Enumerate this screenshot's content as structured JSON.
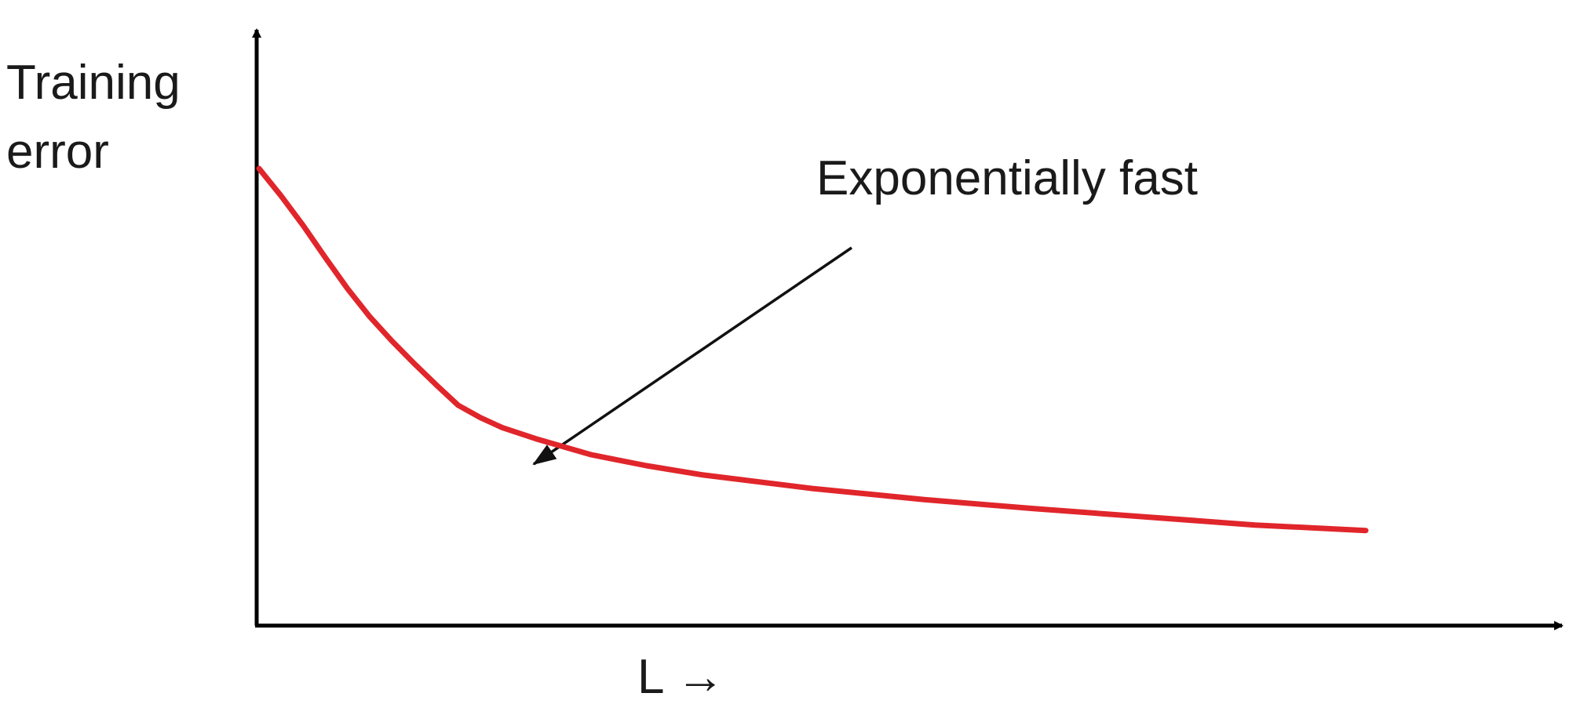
{
  "chart_data": {
    "type": "line",
    "title": "",
    "ylabel_lines": [
      "Training",
      "error"
    ],
    "xlabel": "L →",
    "annotation": {
      "text": "Exponentially fast"
    },
    "grid": false,
    "x_ticks": false,
    "y_ticks": false,
    "series": [
      {
        "color": "#e0262b",
        "points": [
          [
            0.0,
            1.0
          ],
          [
            0.02,
            0.94
          ],
          [
            0.04,
            0.875
          ],
          [
            0.06,
            0.805
          ],
          [
            0.08,
            0.737
          ],
          [
            0.1,
            0.676
          ],
          [
            0.12,
            0.623
          ],
          [
            0.14,
            0.574
          ],
          [
            0.16,
            0.527
          ],
          [
            0.18,
            0.482
          ],
          [
            0.2,
            0.455
          ],
          [
            0.22,
            0.433
          ],
          [
            0.25,
            0.409
          ],
          [
            0.3,
            0.374
          ],
          [
            0.35,
            0.35
          ],
          [
            0.4,
            0.33
          ],
          [
            0.5,
            0.3
          ],
          [
            0.6,
            0.276
          ],
          [
            0.7,
            0.256
          ],
          [
            0.8,
            0.238
          ],
          [
            0.9,
            0.22
          ],
          [
            1.0,
            0.208
          ]
        ]
      }
    ],
    "axis_color": "#000000",
    "text_color": "#1a1a1a"
  }
}
